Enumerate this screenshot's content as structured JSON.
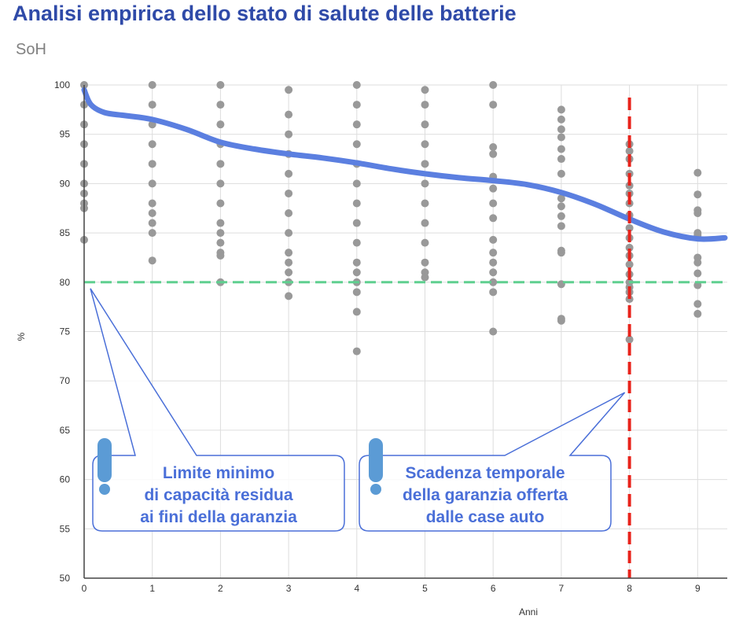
{
  "title": "Analisi empirica dello stato di salute delle batterie",
  "subtitle": "SoH",
  "chart_data": {
    "type": "scatter",
    "title": "Analisi empirica dello stato di salute delle batterie",
    "subtitle": "SoH",
    "xlabel": "Anni",
    "ylabel": "%",
    "xlim": [
      0,
      9.4
    ],
    "ylim": [
      50,
      100
    ],
    "x_ticks": [
      0,
      1,
      2,
      3,
      4,
      5,
      6,
      7,
      8,
      9
    ],
    "y_ticks": [
      50,
      55,
      60,
      65,
      70,
      75,
      80,
      85,
      90,
      95,
      100
    ],
    "grid": true,
    "colors": {
      "points": "#999999",
      "trend": "#5b7fe0",
      "limit": "#5fcf8f",
      "warranty": "#e8231b",
      "annotation": "#4a6fd8",
      "exclamation": "#5b9bd5"
    },
    "series": [
      {
        "values": [
          {
            "x": 0,
            "y": [
              100,
              98,
              96,
              94,
              92,
              90,
              89,
              88,
              87.5,
              84.3
            ]
          },
          {
            "x": 1,
            "y": [
              100,
              98,
              96,
              94,
              92,
              90,
              88,
              87,
              86,
              85,
              82.2
            ]
          },
          {
            "x": 2,
            "y": [
              100,
              98,
              96,
              94,
              92,
              90,
              88,
              86,
              85,
              84,
              83,
              82.7,
              80
            ]
          },
          {
            "x": 3,
            "y": [
              99.5,
              97,
              95,
              93,
              91,
              89,
              87,
              85,
              83,
              82,
              81,
              80,
              78.6
            ]
          },
          {
            "x": 4,
            "y": [
              100,
              98,
              96,
              94,
              92,
              90,
              88,
              86,
              84,
              82,
              81,
              80,
              79,
              77,
              73
            ]
          },
          {
            "x": 5,
            "y": [
              99.5,
              98,
              96,
              94,
              92,
              90,
              88,
              86,
              84,
              82,
              81,
              80.5
            ]
          },
          {
            "x": 6,
            "y": [
              100,
              98,
              93.7,
              93,
              90.7,
              89.5,
              88,
              86.5,
              84.3,
              83,
              82,
              81,
              80,
              79,
              75
            ]
          },
          {
            "x": 7,
            "y": [
              97.5,
              96.5,
              95.5,
              94.7,
              93.5,
              92.5,
              91,
              88.5,
              87.7,
              86.7,
              85.7,
              83.2,
              83,
              79.8,
              76.3,
              76.1
            ]
          },
          {
            "x": 8,
            "y": [
              94,
              93.3,
              92.5,
              91,
              89.8,
              89,
              88,
              86.8,
              85.5,
              84.5,
              83.5,
              82.7,
              81.8,
              80.8,
              80,
              79.5,
              79,
              78.3,
              74.2
            ]
          },
          {
            "x": 9,
            "y": [
              91.1,
              88.9,
              87.3,
              87,
              85,
              84.8,
              82.5,
              82,
              80.9,
              79.7,
              77.8,
              76.8
            ]
          }
        ]
      },
      {
        "x": [
          0,
          0.1,
          0.3,
          0.6,
          1,
          1.5,
          2,
          2.5,
          3,
          3.5,
          4,
          4.5,
          5,
          5.5,
          6,
          6.5,
          7,
          7.5,
          8,
          8.5,
          9,
          9.4
        ],
        "y": [
          99.5,
          98,
          97.2,
          96.9,
          96.5,
          95.5,
          94.2,
          93.5,
          93,
          92.6,
          92.1,
          91.5,
          91,
          90.6,
          90.3,
          89.9,
          89.1,
          87.9,
          86.4,
          85.1,
          84.4,
          84.5
        ]
      }
    ],
    "reference_lines": [
      {
        "axis": "y",
        "value": 80
      },
      {
        "axis": "x",
        "value": 8
      }
    ],
    "annotations": [
      {
        "lines": [
          "Limite minimo",
          "di capacità residua",
          "ai fini della garanzia"
        ]
      },
      {
        "lines": [
          "Scadenza temporale",
          "della garanzia offerta",
          "dalle case auto"
        ]
      }
    ]
  }
}
